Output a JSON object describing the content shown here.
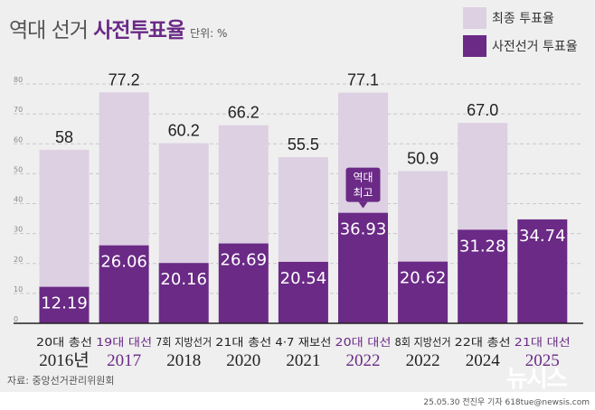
{
  "header": {
    "title_plain": "역대 선거",
    "title_bold": "사전투표율",
    "unit": "단위: %"
  },
  "legend": {
    "items": [
      {
        "label": "최종 투표율",
        "color": "#dcd0e2"
      },
      {
        "label": "사전선거 투표율",
        "color": "#6a2a86"
      }
    ]
  },
  "footer": {
    "source": "자료: 중앙선거관리위원회",
    "credit": "25.05.30 전진우 기자 618tue@newsis.com",
    "watermark": "뉴시스"
  },
  "callout": "역대\n최고",
  "chart_data": {
    "type": "bar",
    "ylim": [
      0,
      80
    ],
    "yticks": [
      0,
      10,
      20,
      30,
      40,
      50,
      60,
      70,
      80
    ],
    "grid": true,
    "categories": [
      {
        "name": "20대 총선",
        "year": "2016년",
        "highlight": false
      },
      {
        "name": "19대 대선",
        "year": "2017",
        "highlight": true
      },
      {
        "name": "7회 지방선거",
        "year": "2018",
        "highlight": false
      },
      {
        "name": "21대 총선",
        "year": "2020",
        "highlight": false
      },
      {
        "name": "4·7 재보선",
        "year": "2021",
        "highlight": false
      },
      {
        "name": "20대 대선",
        "year": "2022",
        "highlight": true
      },
      {
        "name": "8회 지방선거",
        "year": "2022",
        "highlight": false
      },
      {
        "name": "22대 총선",
        "year": "2024",
        "highlight": false
      },
      {
        "name": "21대 대선",
        "year": "2025",
        "highlight": true
      }
    ],
    "series": [
      {
        "name": "최종 투표율",
        "values": [
          58,
          77.2,
          60.2,
          66.2,
          55.5,
          77.1,
          50.9,
          67.0,
          null
        ],
        "labels": [
          "58",
          "77.2",
          "60.2",
          "66.2",
          "55.5",
          "77.1",
          "50.9",
          "67.0",
          ""
        ]
      },
      {
        "name": "사전선거 투표율",
        "values": [
          12.19,
          26.06,
          20.16,
          26.69,
          20.54,
          36.93,
          20.62,
          31.28,
          34.74
        ],
        "labels": [
          "12.19",
          "26.06",
          "20.16",
          "26.69",
          "20.54",
          "36.93",
          "20.62",
          "31.28",
          "34.74"
        ]
      }
    ],
    "colors": {
      "total": "#dcd0e2",
      "early": "#6a2a86",
      "highlight_text": "#6a2a86"
    }
  }
}
